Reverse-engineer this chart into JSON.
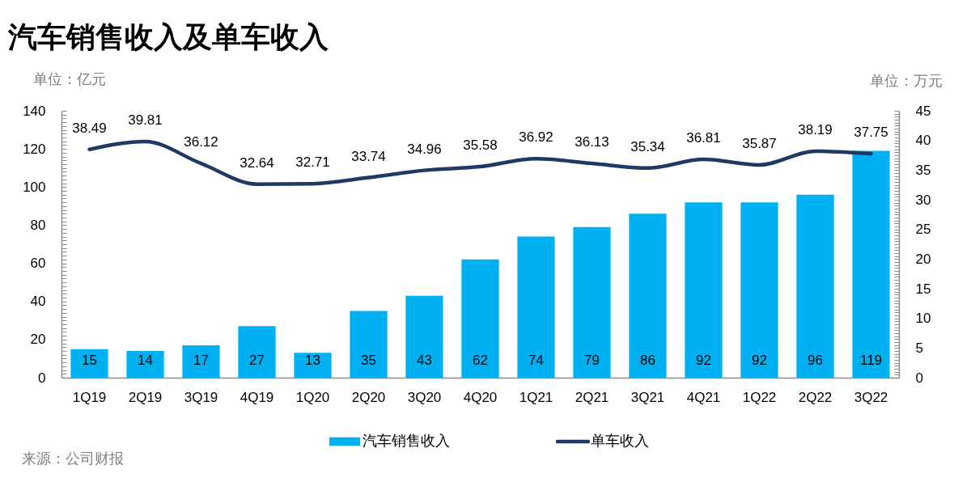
{
  "chart_data": {
    "type": "bar",
    "title": "汽车销售收入及单车收入",
    "ylabel": "单位：亿元",
    "y2label": "单位：万元",
    "categories": [
      "1Q19",
      "2Q19",
      "3Q19",
      "4Q19",
      "1Q20",
      "2Q20",
      "3Q20",
      "4Q20",
      "1Q21",
      "2Q21",
      "3Q21",
      "4Q21",
      "1Q22",
      "2Q22",
      "3Q22"
    ],
    "series": [
      {
        "name": "汽车销售收入",
        "type": "bar",
        "color": "#00b0f0",
        "values": [
          15,
          14,
          17,
          27,
          13,
          35,
          43,
          62,
          74,
          79,
          86,
          92,
          92,
          96,
          119
        ]
      },
      {
        "name": "单车收入",
        "type": "line",
        "axis": "y2",
        "color": "#1f3864",
        "values": [
          38.49,
          39.81,
          36.12,
          32.64,
          32.71,
          33.74,
          34.96,
          35.58,
          36.92,
          36.13,
          35.34,
          36.81,
          35.87,
          38.19,
          37.75
        ]
      }
    ],
    "ylim": [
      0,
      140
    ],
    "yticks": [
      0,
      {
        "value": 2,
        "label": null
      },
      {
        "value": 4,
        "label": null
      },
      {
        "value": 6,
        "label": null
      },
      {
        "value": 8,
        "label": null
      },
      {
        "value": 10,
        "label": null
      },
      {
        "value": 12,
        "label": null
      },
      {
        "value": 14,
        "label": null
      },
      {
        "value": 16,
        "label": null
      },
      {
        "value": 18,
        "label": null
      },
      20,
      {
        "value": 22,
        "label": null
      },
      {
        "value": 24,
        "label": null
      },
      {
        "value": 26,
        "label": null
      },
      {
        "value": 28,
        "label": null
      },
      {
        "value": 30,
        "label": null
      },
      {
        "value": 32,
        "label": null
      },
      {
        "value": 34,
        "label": null
      },
      {
        "value": 36,
        "label": null
      },
      {
        "value": 38,
        "label": null
      },
      40,
      {
        "value": 42,
        "label": null
      },
      {
        "value": 44,
        "label": null
      },
      {
        "value": 46,
        "label": null
      },
      {
        "value": 48,
        "label": null
      },
      {
        "value": 50,
        "label": null
      },
      {
        "value": 52,
        "label": null
      },
      {
        "value": 54,
        "label": null
      },
      {
        "value": 56,
        "label": null
      },
      {
        "value": 58,
        "label": null
      },
      60,
      {
        "value": 62,
        "label": null
      },
      {
        "value": 64,
        "label": null
      },
      {
        "value": 66,
        "label": null
      },
      {
        "value": 68,
        "label": null
      },
      {
        "value": 70,
        "label": null
      },
      {
        "value": 72,
        "label": null
      },
      {
        "value": 74,
        "label": null
      },
      {
        "value": 76,
        "label": null
      },
      {
        "value": 78,
        "label": null
      },
      80,
      {
        "value": 82,
        "label": null
      },
      {
        "value": 84,
        "label": null
      },
      {
        "value": 86,
        "label": null
      },
      {
        "value": 88,
        "label": null
      },
      {
        "value": 90,
        "label": null
      },
      {
        "value": 92,
        "label": null
      },
      {
        "value": 94,
        "label": null
      },
      {
        "value": 96,
        "label": null
      },
      {
        "value": 98,
        "label": null
      },
      100,
      {
        "value": 102,
        "label": null
      },
      {
        "value": 104,
        "label": null
      },
      {
        "value": 106,
        "label": null
      },
      {
        "value": 108,
        "label": null
      },
      {
        "value": 110,
        "label": null
      },
      {
        "value": 112,
        "label": null
      },
      {
        "value": 114,
        "label": null
      },
      {
        "value": 116,
        "label": null
      },
      {
        "value": 118,
        "label": null
      },
      120,
      {
        "value": 122,
        "label": null
      },
      {
        "value": 124,
        "label": null
      },
      {
        "value": 126,
        "label": null
      },
      {
        "value": 128,
        "label": null
      },
      {
        "value": 130,
        "label": null
      },
      {
        "value": 132,
        "label": null
      },
      {
        "value": 134,
        "label": null
      },
      {
        "value": 136,
        "label": null
      },
      {
        "value": 138,
        "label": null
      },
      140
    ],
    "y2lim": [
      0,
      45
    ],
    "y2ticks": [
      0,
      {
        "value": 0.5,
        "label": null
      },
      {
        "value": 1,
        "label": null
      },
      {
        "value": 1.5,
        "label": null
      },
      {
        "value": 2,
        "label": null
      },
      {
        "value": 2.5,
        "label": null
      },
      {
        "value": 3,
        "label": null
      },
      {
        "value": 3.5,
        "label": null
      },
      {
        "value": 4,
        "label": null
      },
      {
        "value": 4.5,
        "label": null
      },
      5,
      {
        "value": 5.5,
        "label": null
      },
      {
        "value": 6,
        "label": null
      },
      {
        "value": 6.5,
        "label": null
      },
      {
        "value": 7,
        "label": null
      },
      {
        "value": 7.5,
        "label": null
      },
      {
        "value": 8,
        "label": null
      },
      {
        "value": 8.5,
        "label": null
      },
      {
        "value": 9,
        "label": null
      },
      {
        "value": 9.5,
        "label": null
      },
      10,
      {
        "value": 10.5,
        "label": null
      },
      {
        "value": 11,
        "label": null
      },
      {
        "value": 11.5,
        "label": null
      },
      {
        "value": 12,
        "label": null
      },
      {
        "value": 12.5,
        "label": null
      },
      {
        "value": 13,
        "label": null
      },
      {
        "value": 13.5,
        "label": null
      },
      {
        "value": 14,
        "label": null
      },
      {
        "value": 14.5,
        "label": null
      },
      15,
      {
        "value": 15.5,
        "label": null
      },
      {
        "value": 16,
        "label": null
      },
      {
        "value": 16.5,
        "label": null
      },
      {
        "value": 17,
        "label": null
      },
      {
        "value": 17.5,
        "label": null
      },
      {
        "value": 18,
        "label": null
      },
      {
        "value": 18.5,
        "label": null
      },
      {
        "value": 19,
        "label": null
      },
      {
        "value": 19.5,
        "label": null
      },
      20,
      {
        "value": 20.5,
        "label": null
      },
      {
        "value": 21,
        "label": null
      },
      {
        "value": 21.5,
        "label": null
      },
      {
        "value": 22,
        "label": null
      },
      {
        "value": 22.5,
        "label": null
      },
      {
        "value": 23,
        "label": null
      },
      {
        "value": 23.5,
        "label": null
      },
      {
        "value": 24,
        "label": null
      },
      {
        "value": 24.5,
        "label": null
      },
      25,
      {
        "value": 25.5,
        "label": null
      },
      {
        "value": 26,
        "label": null
      },
      {
        "value": 26.5,
        "label": null
      },
      {
        "value": 27,
        "label": null
      },
      {
        "value": 27.5,
        "label": null
      },
      {
        "value": 28,
        "label": null
      },
      {
        "value": 28.5,
        "label": null
      },
      {
        "value": 29,
        "label": null
      },
      {
        "value": 29.5,
        "label": null
      },
      30,
      {
        "value": 30.5,
        "label": null
      },
      {
        "value": 31,
        "label": null
      },
      {
        "value": 31.5,
        "label": null
      },
      {
        "value": 32,
        "label": null
      },
      {
        "value": 32.5,
        "label": null
      },
      {
        "value": 33,
        "label": null
      },
      {
        "value": 33.5,
        "label": null
      },
      {
        "value": 34,
        "label": null
      },
      {
        "value": 34.5,
        "label": null
      },
      35,
      {
        "value": 35.5,
        "label": null
      },
      {
        "value": 36,
        "label": null
      },
      {
        "value": 36.5,
        "label": null
      },
      {
        "value": 37,
        "label": null
      },
      {
        "value": 37.5,
        "label": null
      },
      {
        "value": 38,
        "label": null
      },
      {
        "value": 38.5,
        "label": null
      },
      {
        "value": 39,
        "label": null
      },
      {
        "value": 39.5,
        "label": null
      },
      40,
      {
        "value": 40.5,
        "label": null
      },
      {
        "value": 41,
        "label": null
      },
      {
        "value": 41.5,
        "label": null
      },
      {
        "value": 42,
        "label": null
      },
      {
        "value": 42.5,
        "label": null
      },
      {
        "value": 43,
        "label": null
      },
      {
        "value": 43.5,
        "label": null
      },
      {
        "value": 44,
        "label": null
      },
      {
        "value": 44.5,
        "label": null
      },
      45
    ],
    "data_labels": true,
    "legend": "bottom",
    "annotations": [
      "来源：公司财报"
    ]
  }
}
